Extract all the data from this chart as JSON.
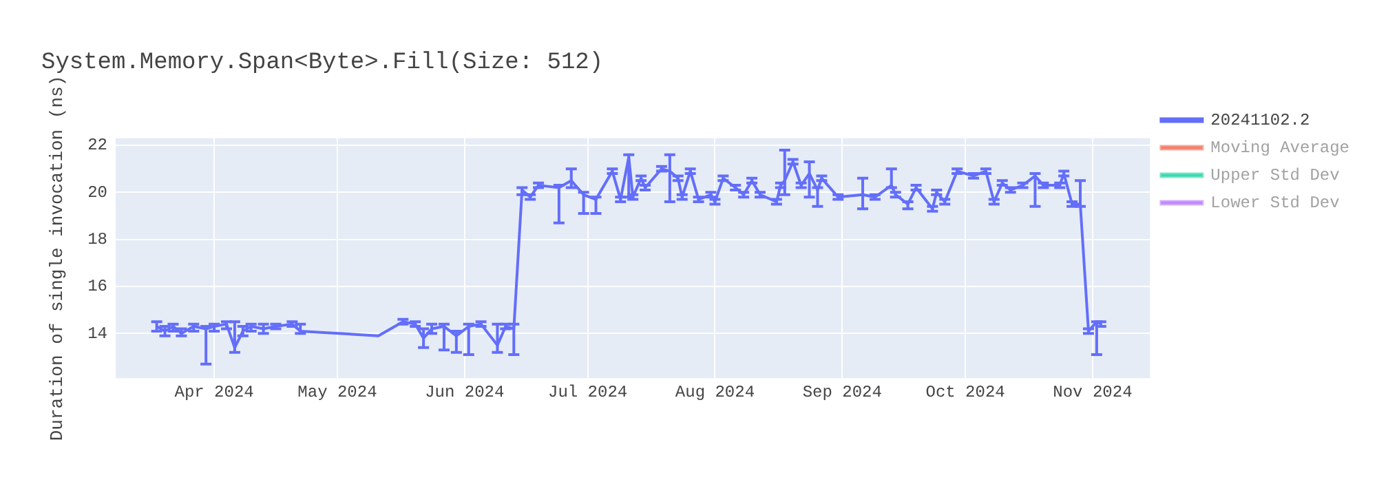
{
  "chart_data": {
    "type": "line",
    "title": "System.Memory.Span<Byte>.Fill(Size: 512)",
    "ylabel": "Duration of single invocation (ns)",
    "x": [
      "2024-03-18",
      "2024-03-20",
      "2024-03-22",
      "2024-03-24",
      "2024-03-27",
      "2024-03-30",
      "2024-04-01",
      "2024-04-04",
      "2024-04-06",
      "2024-04-08",
      "2024-04-10",
      "2024-04-13",
      "2024-04-16",
      "2024-04-20",
      "2024-04-22",
      "2024-05-11",
      "2024-05-17",
      "2024-05-20",
      "2024-05-22",
      "2024-05-24",
      "2024-05-27",
      "2024-05-30",
      "2024-06-02",
      "2024-06-05",
      "2024-06-09",
      "2024-06-11",
      "2024-06-13",
      "2024-06-15",
      "2024-06-17",
      "2024-06-19",
      "2024-06-24",
      "2024-06-27",
      "2024-06-30",
      "2024-07-03",
      "2024-07-07",
      "2024-07-09",
      "2024-07-11",
      "2024-07-12",
      "2024-07-14",
      "2024-07-15",
      "2024-07-19",
      "2024-07-21",
      "2024-07-23",
      "2024-07-24",
      "2024-07-26",
      "2024-07-28",
      "2024-07-31",
      "2024-08-01",
      "2024-08-03",
      "2024-08-06",
      "2024-08-08",
      "2024-08-10",
      "2024-08-12",
      "2024-08-16",
      "2024-08-17",
      "2024-08-18",
      "2024-08-20",
      "2024-08-22",
      "2024-08-24",
      "2024-08-26",
      "2024-08-27",
      "2024-08-31",
      "2024-09-06",
      "2024-09-09",
      "2024-09-13",
      "2024-09-14",
      "2024-09-17",
      "2024-09-19",
      "2024-09-23",
      "2024-09-24",
      "2024-09-26",
      "2024-09-29",
      "2024-10-03",
      "2024-10-06",
      "2024-10-08",
      "2024-10-10",
      "2024-10-12",
      "2024-10-15",
      "2024-10-18",
      "2024-10-20",
      "2024-10-24",
      "2024-10-25",
      "2024-10-27",
      "2024-10-29",
      "2024-10-31",
      "2024-11-02",
      "2024-11-03"
    ],
    "series": [
      {
        "name": "20241102.2",
        "color": "#636efa",
        "values": [
          14.3,
          14.1,
          14.3,
          14.0,
          14.3,
          14.2,
          14.3,
          14.4,
          13.4,
          14.1,
          14.3,
          14.2,
          14.3,
          14.4,
          14.1,
          13.9,
          14.5,
          14.4,
          13.8,
          14.2,
          14.3,
          13.9,
          14.3,
          14.4,
          13.5,
          14.3,
          14.2,
          20.1,
          19.8,
          20.3,
          20.2,
          20.5,
          19.9,
          19.7,
          20.9,
          19.7,
          21.5,
          19.8,
          20.6,
          20.2,
          21.0,
          20.9,
          20.6,
          19.8,
          20.9,
          19.7,
          19.9,
          19.6,
          20.6,
          20.2,
          19.9,
          20.5,
          19.9,
          19.6,
          20.3,
          20.5,
          21.3,
          20.3,
          20.8,
          20.1,
          20.6,
          19.8,
          19.9,
          19.8,
          20.3,
          19.9,
          19.5,
          20.2,
          19.3,
          20.0,
          19.6,
          20.9,
          20.7,
          20.9,
          19.6,
          20.4,
          20.1,
          20.3,
          20.7,
          20.3,
          20.3,
          20.8,
          19.5,
          19.5,
          14.1,
          14.5,
          14.4
        ],
        "errors": [
          [
            14.1,
            14.5
          ],
          [
            13.9,
            14.3
          ],
          [
            14.1,
            14.4
          ],
          [
            13.9,
            14.2
          ],
          [
            14.1,
            14.4
          ],
          [
            12.7,
            14.3
          ],
          [
            14.1,
            14.4
          ],
          [
            14.2,
            14.5
          ],
          [
            13.2,
            14.5
          ],
          [
            13.9,
            14.3
          ],
          [
            14.1,
            14.4
          ],
          [
            14.0,
            14.4
          ],
          [
            14.2,
            14.4
          ],
          [
            14.3,
            14.5
          ],
          [
            14.0,
            14.4
          ],
          null,
          [
            14.4,
            14.6
          ],
          [
            14.3,
            14.5
          ],
          [
            13.4,
            14.2
          ],
          [
            14.0,
            14.4
          ],
          [
            13.3,
            14.4
          ],
          [
            13.2,
            14.1
          ],
          [
            13.1,
            14.4
          ],
          [
            14.3,
            14.5
          ],
          [
            13.2,
            14.4
          ],
          [
            14.2,
            14.4
          ],
          [
            13.1,
            14.4
          ],
          [
            19.9,
            20.2
          ],
          [
            19.7,
            19.9
          ],
          [
            20.2,
            20.4
          ],
          [
            18.7,
            20.3
          ],
          [
            20.2,
            21.0
          ],
          [
            19.1,
            20.0
          ],
          [
            19.1,
            19.8
          ],
          [
            20.8,
            21.0
          ],
          [
            19.6,
            19.8
          ],
          [
            19.8,
            21.6
          ],
          [
            19.7,
            19.9
          ],
          [
            20.5,
            20.7
          ],
          [
            20.1,
            20.3
          ],
          [
            20.9,
            21.1
          ],
          [
            19.6,
            21.6
          ],
          [
            20.5,
            20.7
          ],
          [
            19.7,
            19.9
          ],
          [
            20.8,
            21.0
          ],
          [
            19.6,
            19.8
          ],
          [
            19.8,
            20.0
          ],
          [
            19.5,
            19.7
          ],
          [
            20.5,
            20.7
          ],
          [
            20.1,
            20.3
          ],
          [
            19.8,
            20.0
          ],
          [
            20.4,
            20.6
          ],
          [
            19.8,
            20.0
          ],
          [
            19.5,
            19.7
          ],
          [
            20.2,
            20.4
          ],
          [
            19.9,
            21.8
          ],
          [
            21.2,
            21.4
          ],
          [
            20.2,
            20.4
          ],
          [
            19.8,
            21.3
          ],
          [
            19.4,
            20.2
          ],
          [
            20.5,
            20.7
          ],
          [
            19.7,
            19.9
          ],
          [
            19.3,
            20.6
          ],
          [
            19.7,
            19.9
          ],
          [
            20.2,
            21.0
          ],
          [
            19.8,
            20.0
          ],
          [
            19.3,
            19.6
          ],
          [
            20.1,
            20.3
          ],
          [
            19.2,
            19.4
          ],
          [
            19.9,
            20.1
          ],
          [
            19.5,
            19.7
          ],
          [
            20.8,
            21.0
          ],
          [
            20.6,
            20.8
          ],
          [
            20.8,
            21.0
          ],
          [
            19.5,
            19.7
          ],
          [
            20.3,
            20.5
          ],
          [
            20.0,
            20.2
          ],
          [
            20.2,
            20.4
          ],
          [
            19.4,
            20.8
          ],
          [
            20.2,
            20.4
          ],
          [
            20.2,
            20.4
          ],
          [
            20.7,
            20.9
          ],
          [
            19.4,
            19.6
          ],
          [
            19.4,
            20.5
          ],
          [
            14.0,
            14.2
          ],
          [
            13.1,
            14.5
          ],
          [
            14.3,
            14.5
          ]
        ]
      },
      {
        "name": "Moving Average",
        "color": "#ef553b",
        "values": [
          null,
          null,
          null,
          null,
          null,
          null,
          null,
          null,
          null,
          null,
          null,
          null,
          null,
          null,
          null,
          null,
          null,
          null,
          null,
          null,
          null,
          null,
          null,
          null,
          null,
          null,
          null,
          null,
          null,
          null,
          null,
          null,
          null,
          null,
          null,
          null,
          null,
          null,
          null,
          null,
          null,
          null,
          null,
          null,
          null,
          null,
          null,
          null,
          null,
          null,
          null,
          null,
          null,
          null,
          null,
          null,
          null,
          null,
          null,
          null,
          null,
          null,
          null,
          null,
          null,
          null,
          null,
          null,
          null,
          null,
          null,
          null,
          null,
          null,
          null,
          null,
          null,
          null,
          null,
          null,
          null,
          null,
          null,
          null,
          null,
          null,
          null
        ]
      },
      {
        "name": "Upper Std Dev",
        "color": "#00cc96",
        "values": [
          null,
          null,
          null,
          null,
          null,
          null,
          null,
          null,
          null,
          null,
          null,
          null,
          null,
          null,
          null,
          null,
          null,
          null,
          null,
          null,
          null,
          null,
          null,
          null,
          null,
          null,
          null,
          null,
          null,
          null,
          null,
          null,
          null,
          null,
          null,
          null,
          null,
          null,
          null,
          null,
          null,
          null,
          null,
          null,
          null,
          null,
          null,
          null,
          null,
          null,
          null,
          null,
          null,
          null,
          null,
          null,
          null,
          null,
          null,
          null,
          null,
          null,
          null,
          null,
          null,
          null,
          null,
          null,
          null,
          null,
          null,
          null,
          null,
          null,
          null,
          null,
          null,
          null,
          null,
          null,
          null,
          null,
          null,
          null,
          null,
          null,
          null
        ]
      },
      {
        "name": "Lower Std Dev",
        "color": "#ab63fa",
        "values": [
          null,
          null,
          null,
          null,
          null,
          null,
          null,
          null,
          null,
          null,
          null,
          null,
          null,
          null,
          null,
          null,
          null,
          null,
          null,
          null,
          null,
          null,
          null,
          null,
          null,
          null,
          null,
          null,
          null,
          null,
          null,
          null,
          null,
          null,
          null,
          null,
          null,
          null,
          null,
          null,
          null,
          null,
          null,
          null,
          null,
          null,
          null,
          null,
          null,
          null,
          null,
          null,
          null,
          null,
          null,
          null,
          null,
          null,
          null,
          null,
          null,
          null,
          null,
          null,
          null,
          null,
          null,
          null,
          null,
          null,
          null,
          null,
          null,
          null,
          null,
          null,
          null,
          null,
          null,
          null,
          null,
          null,
          null,
          null,
          null,
          null,
          null
        ]
      }
    ],
    "xlim": [
      "2024-03-08",
      "2024-11-15"
    ],
    "xticks": [
      {
        "value": "2024-04-01",
        "label": "Apr 2024"
      },
      {
        "value": "2024-05-01",
        "label": "May 2024"
      },
      {
        "value": "2024-06-01",
        "label": "Jun 2024"
      },
      {
        "value": "2024-07-01",
        "label": "Jul 2024"
      },
      {
        "value": "2024-08-01",
        "label": "Aug 2024"
      },
      {
        "value": "2024-09-01",
        "label": "Sep 2024"
      },
      {
        "value": "2024-10-01",
        "label": "Oct 2024"
      },
      {
        "value": "2024-11-01",
        "label": "Nov 2024"
      }
    ],
    "ylim": [
      12.1,
      22.3
    ],
    "yticks": [
      14,
      16,
      18,
      20,
      22
    ],
    "grid": true,
    "legend": "right",
    "marker": "none",
    "line_style": "solid"
  }
}
